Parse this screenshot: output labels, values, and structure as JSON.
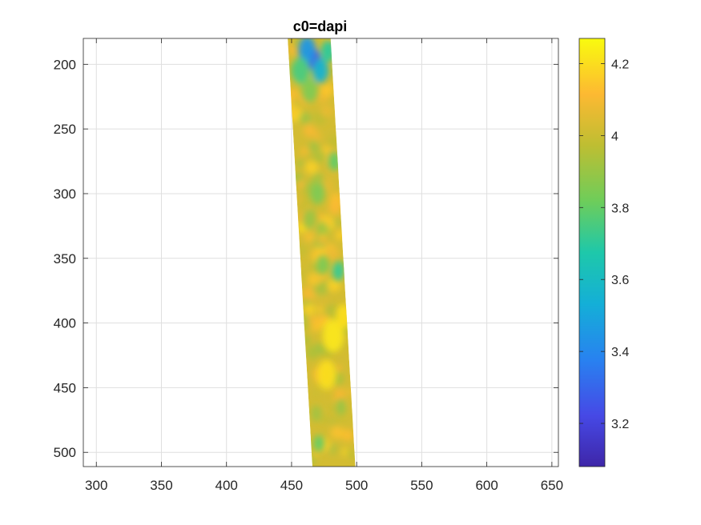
{
  "chart_data": {
    "type": "heatmap",
    "title": "c0=dapi",
    "xlabel": "",
    "ylabel": "",
    "xlim": [
      290,
      655
    ],
    "ylim": [
      180,
      511
    ],
    "y_reversed": true,
    "grid": true,
    "x_ticks": [
      300,
      350,
      400,
      450,
      500,
      550,
      600,
      650
    ],
    "y_ticks": [
      200,
      250,
      300,
      350,
      400,
      450,
      500
    ],
    "colorbar": {
      "range": [
        3.08,
        4.27
      ],
      "ticks": [
        3.2,
        3.4,
        3.6,
        3.8,
        4,
        4.2
      ],
      "tick_labels": [
        "3.2",
        "3.4",
        "3.6",
        "3.8",
        "4",
        "4.2"
      ],
      "colormap": "parula"
    },
    "strip": {
      "corners": [
        [
          447,
          180
        ],
        [
          480,
          180
        ],
        [
          499,
          511
        ],
        [
          466,
          511
        ]
      ],
      "background_value": 4.02,
      "features": [
        {
          "x": 467,
          "y": 196,
          "value": 3.22,
          "r": 8
        },
        {
          "x": 462,
          "y": 189,
          "value": 3.45,
          "r": 10
        },
        {
          "x": 472,
          "y": 205,
          "value": 3.55,
          "r": 9
        },
        {
          "x": 457,
          "y": 205,
          "value": 3.75,
          "r": 10
        },
        {
          "x": 478,
          "y": 190,
          "value": 3.7,
          "r": 8
        },
        {
          "x": 464,
          "y": 220,
          "value": 3.85,
          "r": 9
        },
        {
          "x": 483,
          "y": 275,
          "value": 3.8,
          "r": 7
        },
        {
          "x": 470,
          "y": 300,
          "value": 3.85,
          "r": 8
        },
        {
          "x": 464,
          "y": 320,
          "value": 3.9,
          "r": 7
        },
        {
          "x": 486,
          "y": 360,
          "value": 3.72,
          "r": 7
        },
        {
          "x": 474,
          "y": 355,
          "value": 3.85,
          "r": 7
        },
        {
          "x": 482,
          "y": 410,
          "value": 4.22,
          "r": 12
        },
        {
          "x": 477,
          "y": 440,
          "value": 4.2,
          "r": 11
        },
        {
          "x": 490,
          "y": 395,
          "value": 4.2,
          "r": 9
        },
        {
          "x": 471,
          "y": 493,
          "value": 3.8,
          "r": 6
        },
        {
          "x": 488,
          "y": 465,
          "value": 3.9,
          "r": 6
        },
        {
          "x": 469,
          "y": 470,
          "value": 3.92,
          "r": 6
        }
      ]
    }
  }
}
